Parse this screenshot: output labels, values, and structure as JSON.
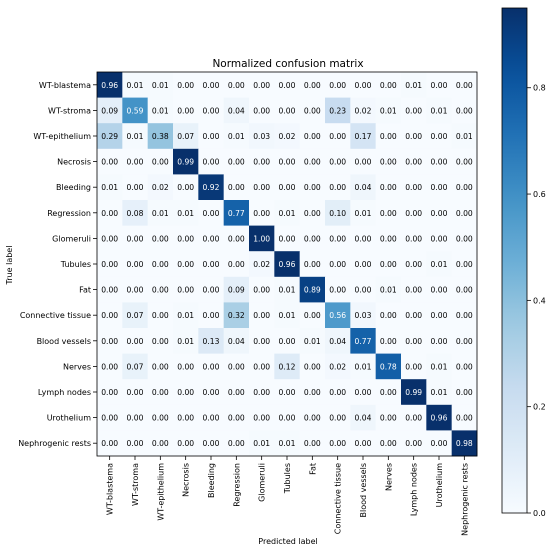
{
  "chart_data": {
    "type": "heatmap",
    "title": "Normalized confusion matrix",
    "xlabel": "Predicted label",
    "ylabel": "True label",
    "labels": [
      "WT-blastema",
      "WT-stroma",
      "WT-epithelium",
      "Necrosis",
      "Bleeding",
      "Regression",
      "Glomeruli",
      "Tubules",
      "Fat",
      "Connective tissue",
      "Blood vessels",
      "Nerves",
      "Lymph nodes",
      "Urothelium",
      "Nephrogenic rests"
    ],
    "matrix": [
      [
        0.96,
        0.01,
        0.01,
        0.0,
        0.0,
        0.0,
        0.0,
        0.0,
        0.0,
        0.0,
        0.0,
        0.0,
        0.01,
        0.0,
        0.0
      ],
      [
        0.09,
        0.59,
        0.01,
        0.0,
        0.0,
        0.04,
        0.0,
        0.0,
        0.0,
        0.23,
        0.02,
        0.01,
        0.0,
        0.01,
        0.0
      ],
      [
        0.29,
        0.01,
        0.38,
        0.07,
        0.0,
        0.01,
        0.03,
        0.02,
        0.0,
        0.0,
        0.17,
        0.0,
        0.0,
        0.0,
        0.01
      ],
      [
        0.0,
        0.0,
        0.0,
        0.99,
        0.0,
        0.0,
        0.0,
        0.0,
        0.0,
        0.0,
        0.0,
        0.0,
        0.0,
        0.0,
        0.0
      ],
      [
        0.01,
        0.0,
        0.02,
        0.0,
        0.92,
        0.0,
        0.0,
        0.0,
        0.0,
        0.0,
        0.04,
        0.0,
        0.0,
        0.0,
        0.0
      ],
      [
        0.0,
        0.08,
        0.01,
        0.01,
        0.0,
        0.77,
        0.0,
        0.01,
        0.0,
        0.1,
        0.01,
        0.0,
        0.0,
        0.0,
        0.0
      ],
      [
        0.0,
        0.0,
        0.0,
        0.0,
        0.0,
        0.0,
        1.0,
        0.0,
        0.0,
        0.0,
        0.0,
        0.0,
        0.0,
        0.0,
        0.0
      ],
      [
        0.0,
        0.0,
        0.0,
        0.0,
        0.0,
        0.0,
        0.02,
        0.96,
        0.0,
        0.0,
        0.0,
        0.0,
        0.0,
        0.01,
        0.0
      ],
      [
        0.0,
        0.0,
        0.0,
        0.0,
        0.0,
        0.09,
        0.0,
        0.01,
        0.89,
        0.0,
        0.0,
        0.01,
        0.0,
        0.0,
        0.0
      ],
      [
        0.0,
        0.07,
        0.0,
        0.01,
        0.0,
        0.32,
        0.0,
        0.01,
        0.0,
        0.56,
        0.03,
        0.0,
        0.0,
        0.0,
        0.0
      ],
      [
        0.0,
        0.0,
        0.0,
        0.01,
        0.13,
        0.04,
        0.0,
        0.0,
        0.01,
        0.04,
        0.77,
        0.0,
        0.0,
        0.0,
        0.0
      ],
      [
        0.0,
        0.07,
        0.0,
        0.0,
        0.0,
        0.0,
        0.0,
        0.12,
        0.0,
        0.02,
        0.01,
        0.78,
        0.0,
        0.01,
        0.0
      ],
      [
        0.0,
        0.0,
        0.0,
        0.0,
        0.0,
        0.0,
        0.0,
        0.0,
        0.0,
        0.0,
        0.0,
        0.0,
        0.99,
        0.01,
        0.0
      ],
      [
        0.0,
        0.0,
        0.0,
        0.0,
        0.0,
        0.0,
        0.0,
        0.0,
        0.0,
        0.0,
        0.04,
        0.0,
        0.0,
        0.96,
        0.0
      ],
      [
        0.0,
        0.0,
        0.0,
        0.0,
        0.0,
        0.0,
        0.01,
        0.01,
        0.0,
        0.0,
        0.0,
        0.0,
        0.0,
        0.0,
        0.98
      ]
    ],
    "colorbar": {
      "ticks": [
        0.0,
        0.2,
        0.4,
        0.6,
        0.8
      ],
      "tick_labels": [
        "0.0",
        "0.2",
        "0.4",
        "0.6",
        "0.8"
      ],
      "range": [
        0.0,
        0.95
      ]
    },
    "colormap": "Blues",
    "colors": {
      "low": "#f7fbff",
      "high": "#08306b",
      "text_dark": "#000000",
      "text_light": "#ffffff"
    },
    "grid": false
  }
}
